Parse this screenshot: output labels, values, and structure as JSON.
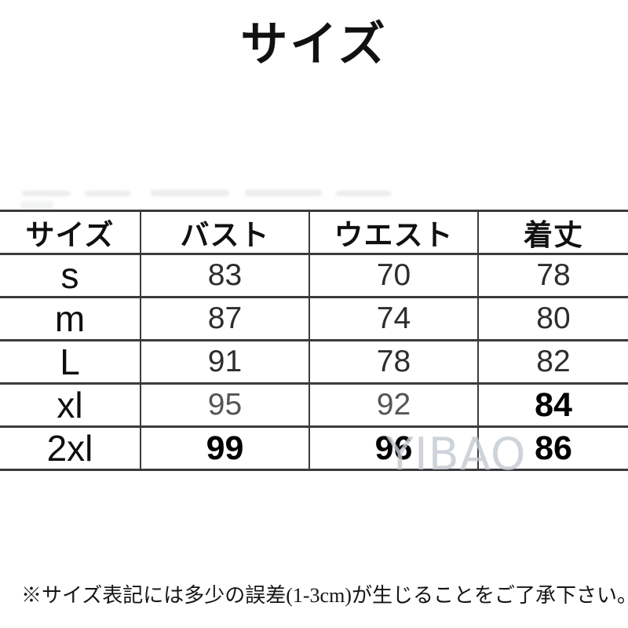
{
  "page_title": "サイズ",
  "table": {
    "headers": [
      "サイズ",
      "バスト",
      "ウエスト",
      "着丈"
    ],
    "rows": [
      [
        "s",
        "83",
        "70",
        "78"
      ],
      [
        "m",
        "87",
        "74",
        "80"
      ],
      [
        "L",
        "91",
        "78",
        "82"
      ],
      [
        "xl",
        "95",
        "92",
        "84"
      ],
      [
        "2xl",
        "99",
        "96",
        "86"
      ]
    ]
  },
  "watermark": "YIBAO",
  "footnote": "※サイズ表記には多少の誤差(1-3cm)が生じることをご了承下さい。",
  "colors": {
    "text": "#111111",
    "table_border": "#3b3b3b",
    "faded_number": "#555555",
    "watermark": "#c4cad1",
    "background": "#ffffff"
  }
}
